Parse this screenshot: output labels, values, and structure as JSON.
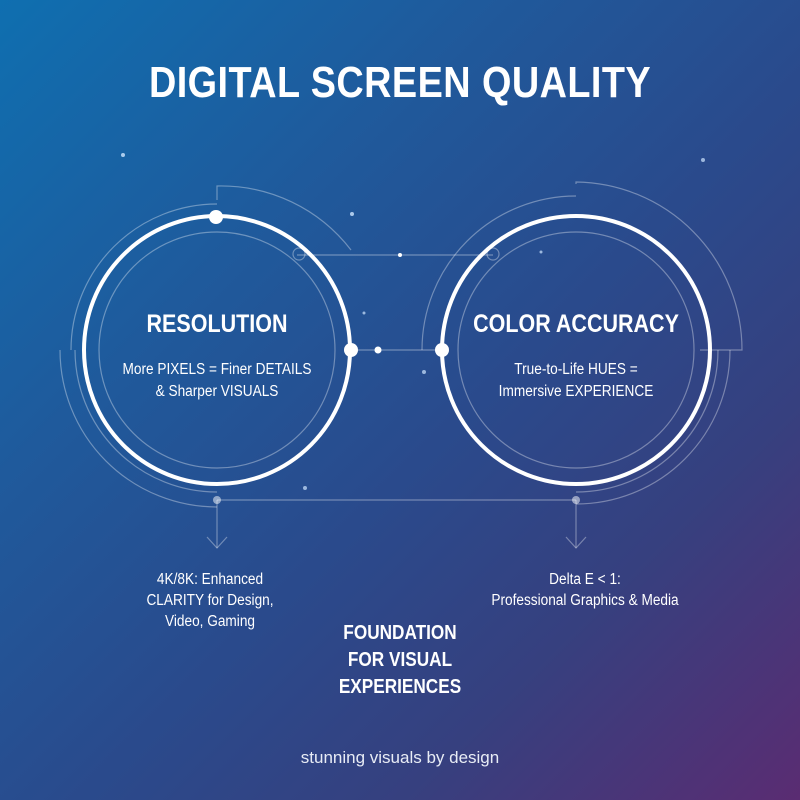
{
  "title": "DIGITAL SCREEN QUALITY",
  "circles": [
    {
      "title": "RESOLUTION",
      "lines": [
        "More PIXELS = Finer DETAILS",
        "& Sharper VISUALS"
      ],
      "note": [
        "4K/8K: Enhanced",
        "CLARITY for Design,",
        "Video, Gaming"
      ]
    },
    {
      "title": "COLOR ACCURACY",
      "lines": [
        "True-to-Life HUES =",
        "Immersive EXPERIENCE"
      ],
      "note": [
        "Delta E < 1:",
        "Professional Graphics & Media"
      ]
    }
  ],
  "foundation": [
    "FOUNDATION",
    "FOR VISUAL",
    "EXPERIENCES"
  ],
  "tagline": "stunning visuals by design",
  "colors": {
    "background_start": "#0f6fb0",
    "background_end": "#5a2c72",
    "ring": "#ffffff"
  }
}
